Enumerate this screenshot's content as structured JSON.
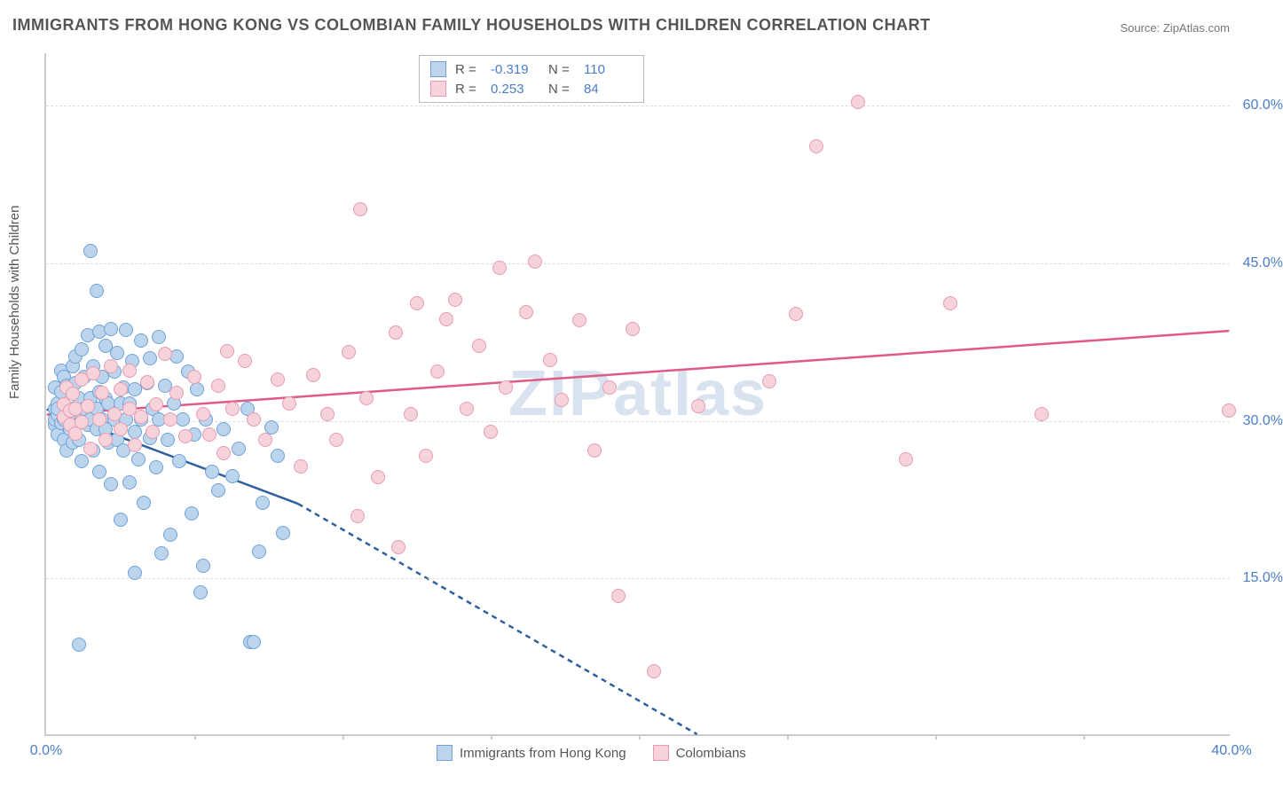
{
  "title": "IMMIGRANTS FROM HONG KONG VS COLOMBIAN FAMILY HOUSEHOLDS WITH CHILDREN CORRELATION CHART",
  "source_label": "Source: ZipAtlas.com",
  "ylabel": "Family Households with Children",
  "xlabel_legend": {
    "series1": "Immigrants from Hong Kong",
    "series2": "Colombians"
  },
  "watermark": "ZIPatlas",
  "chart": {
    "type": "scatter",
    "xlim": [
      0,
      40
    ],
    "ylim": [
      0,
      65
    ],
    "xtick_labels": [
      "0.0%",
      "40.0%"
    ],
    "xtick_positions": [
      0,
      40
    ],
    "xtick_minor": [
      5,
      10,
      15,
      20,
      25,
      30,
      35
    ],
    "ytick_labels": [
      "15.0%",
      "30.0%",
      "45.0%",
      "60.0%"
    ],
    "ytick_positions": [
      15,
      30,
      45,
      60
    ],
    "background": "#ffffff",
    "grid_color": "#dddddd",
    "axis_color": "#cccccc",
    "series": [
      {
        "name": "hongkong",
        "R": "-0.319",
        "N": "110",
        "fill": "#bcd4ec",
        "stroke": "#6fa3d8",
        "trend_color": "#2e5f9e",
        "trend_solid": {
          "x1": 0,
          "y1": 31,
          "x2": 8.5,
          "y2": 22
        },
        "trend_dash": {
          "x1": 8.5,
          "y1": 22,
          "x2": 22,
          "y2": 0
        },
        "points": [
          [
            0.3,
            31
          ],
          [
            0.3,
            29.5
          ],
          [
            0.3,
            33
          ],
          [
            0.3,
            30
          ],
          [
            0.4,
            28.5
          ],
          [
            0.4,
            31.5
          ],
          [
            0.4,
            30.4
          ],
          [
            0.5,
            34.6
          ],
          [
            0.5,
            32.6
          ],
          [
            0.5,
            29.6
          ],
          [
            0.6,
            31
          ],
          [
            0.6,
            28
          ],
          [
            0.6,
            34
          ],
          [
            0.6,
            30
          ],
          [
            0.7,
            27
          ],
          [
            0.7,
            33.2
          ],
          [
            0.8,
            30
          ],
          [
            0.8,
            29
          ],
          [
            0.8,
            31
          ],
          [
            0.9,
            35
          ],
          [
            0.9,
            27.8
          ],
          [
            1.0,
            36
          ],
          [
            1.0,
            30
          ],
          [
            1.0,
            33.4
          ],
          [
            1.1,
            32
          ],
          [
            1.1,
            28
          ],
          [
            1.2,
            30
          ],
          [
            1.2,
            36.6
          ],
          [
            1.2,
            26
          ],
          [
            1.3,
            31
          ],
          [
            1.3,
            34
          ],
          [
            1.4,
            38
          ],
          [
            1.4,
            29.5
          ],
          [
            1.5,
            32
          ],
          [
            1.5,
            30
          ],
          [
            1.5,
            46
          ],
          [
            1.6,
            27
          ],
          [
            1.6,
            35
          ],
          [
            1.7,
            31
          ],
          [
            1.7,
            29
          ],
          [
            1.7,
            42.2
          ],
          [
            1.8,
            38.3
          ],
          [
            1.8,
            32.6
          ],
          [
            1.8,
            25
          ],
          [
            1.9,
            30
          ],
          [
            1.9,
            34
          ],
          [
            2.0,
            29
          ],
          [
            2.0,
            32
          ],
          [
            2.0,
            37
          ],
          [
            2.1,
            27.8
          ],
          [
            2.1,
            31.5
          ],
          [
            2.2,
            38.6
          ],
          [
            2.2,
            23.8
          ],
          [
            2.3,
            30
          ],
          [
            2.3,
            34.5
          ],
          [
            2.4,
            28
          ],
          [
            2.4,
            36.3
          ],
          [
            2.5,
            31.5
          ],
          [
            2.5,
            20.4
          ],
          [
            2.6,
            33
          ],
          [
            2.6,
            27
          ],
          [
            2.7,
            38.5
          ],
          [
            2.7,
            30
          ],
          [
            2.8,
            24
          ],
          [
            2.8,
            31.5
          ],
          [
            2.9,
            35.5
          ],
          [
            3.0,
            28.8
          ],
          [
            3.0,
            32.8
          ],
          [
            3.1,
            26.2
          ],
          [
            3.2,
            37.5
          ],
          [
            3.2,
            30
          ],
          [
            3.3,
            22
          ],
          [
            3.4,
            33.4
          ],
          [
            3.5,
            28.2
          ],
          [
            3.5,
            35.8
          ],
          [
            3.6,
            31
          ],
          [
            3.7,
            25.4
          ],
          [
            3.8,
            30
          ],
          [
            3.8,
            37.8
          ],
          [
            3.9,
            17.2
          ],
          [
            4.0,
            33.2
          ],
          [
            4.1,
            28
          ],
          [
            4.2,
            19
          ],
          [
            4.3,
            31.5
          ],
          [
            4.4,
            36
          ],
          [
            4.5,
            26
          ],
          [
            4.6,
            30
          ],
          [
            4.8,
            34.5
          ],
          [
            4.9,
            21
          ],
          [
            5.0,
            28.5
          ],
          [
            5.1,
            32.8
          ],
          [
            5.2,
            13.5
          ],
          [
            5.3,
            16
          ],
          [
            5.4,
            30
          ],
          [
            5.6,
            25
          ],
          [
            5.8,
            23.2
          ],
          [
            6.0,
            29
          ],
          [
            6.3,
            24.6
          ],
          [
            6.5,
            27.2
          ],
          [
            6.8,
            31
          ],
          [
            6.9,
            8.8
          ],
          [
            7.2,
            17.4
          ],
          [
            7.3,
            22
          ],
          [
            7.6,
            29.2
          ],
          [
            7.8,
            26.5
          ],
          [
            8.0,
            19.2
          ],
          [
            7.0,
            8.8
          ],
          [
            1.1,
            8.5
          ],
          [
            3.0,
            15.4
          ],
          [
            0.6,
            30.5
          ],
          [
            0.4,
            31
          ]
        ]
      },
      {
        "name": "colombians",
        "R": "0.253",
        "N": "84",
        "fill": "#f6d2db",
        "stroke": "#e89bb0",
        "trend_color": "#e05a87",
        "trend_solid": {
          "x1": 0,
          "y1": 30.5,
          "x2": 40,
          "y2": 38.5
        },
        "points": [
          [
            0.6,
            30.2
          ],
          [
            0.6,
            31.4
          ],
          [
            0.7,
            33
          ],
          [
            0.8,
            29.5
          ],
          [
            0.8,
            30.8
          ],
          [
            0.9,
            32.4
          ],
          [
            1.0,
            28.6
          ],
          [
            1.0,
            31
          ],
          [
            1.2,
            33.8
          ],
          [
            1.2,
            29.7
          ],
          [
            1.4,
            31.2
          ],
          [
            1.5,
            27.2
          ],
          [
            1.6,
            34.4
          ],
          [
            1.8,
            30
          ],
          [
            1.9,
            32.5
          ],
          [
            2.0,
            28
          ],
          [
            2.2,
            35
          ],
          [
            2.3,
            30.5
          ],
          [
            2.5,
            29
          ],
          [
            2.5,
            32.8
          ],
          [
            2.8,
            31
          ],
          [
            2.8,
            34.6
          ],
          [
            3.0,
            27.5
          ],
          [
            3.2,
            30.2
          ],
          [
            3.4,
            33.5
          ],
          [
            3.6,
            28.8
          ],
          [
            3.7,
            31.4
          ],
          [
            4.0,
            36.2
          ],
          [
            4.2,
            30
          ],
          [
            4.4,
            32.5
          ],
          [
            4.7,
            28.4
          ],
          [
            5.0,
            34
          ],
          [
            5.3,
            30.5
          ],
          [
            5.5,
            28.5
          ],
          [
            5.8,
            33.2
          ],
          [
            6.0,
            26.8
          ],
          [
            6.3,
            31
          ],
          [
            6.7,
            35.5
          ],
          [
            7.0,
            30
          ],
          [
            7.4,
            28
          ],
          [
            7.8,
            33.8
          ],
          [
            8.2,
            31.5
          ],
          [
            8.6,
            25.5
          ],
          [
            9.0,
            34.2
          ],
          [
            9.5,
            30.5
          ],
          [
            9.8,
            28
          ],
          [
            10.2,
            36.4
          ],
          [
            10.5,
            20.8
          ],
          [
            10.8,
            32
          ],
          [
            11.2,
            24.5
          ],
          [
            11.8,
            38.2
          ],
          [
            11.9,
            17.8
          ],
          [
            12.3,
            30.5
          ],
          [
            12.5,
            41
          ],
          [
            12.8,
            26.5
          ],
          [
            13.2,
            34.5
          ],
          [
            13.5,
            39.5
          ],
          [
            13.8,
            41.4
          ],
          [
            10.6,
            50
          ],
          [
            14.2,
            31
          ],
          [
            14.6,
            37
          ],
          [
            15.0,
            28.8
          ],
          [
            15.3,
            44.4
          ],
          [
            15.5,
            33
          ],
          [
            16.2,
            40.2
          ],
          [
            16.5,
            45
          ],
          [
            17.0,
            35.6
          ],
          [
            17.4,
            31.8
          ],
          [
            18.0,
            39.4
          ],
          [
            18.5,
            27
          ],
          [
            19.0,
            33
          ],
          [
            19.8,
            38.6
          ],
          [
            19.3,
            13.2
          ],
          [
            20.5,
            6
          ],
          [
            22.0,
            31.2
          ],
          [
            24.4,
            33.6
          ],
          [
            25.3,
            40
          ],
          [
            26.0,
            56
          ],
          [
            27.4,
            60.2
          ],
          [
            29.0,
            26.2
          ],
          [
            30.5,
            41
          ],
          [
            33.6,
            30.5
          ],
          [
            39.9,
            30.8
          ],
          [
            6.1,
            36.5
          ]
        ]
      }
    ]
  }
}
